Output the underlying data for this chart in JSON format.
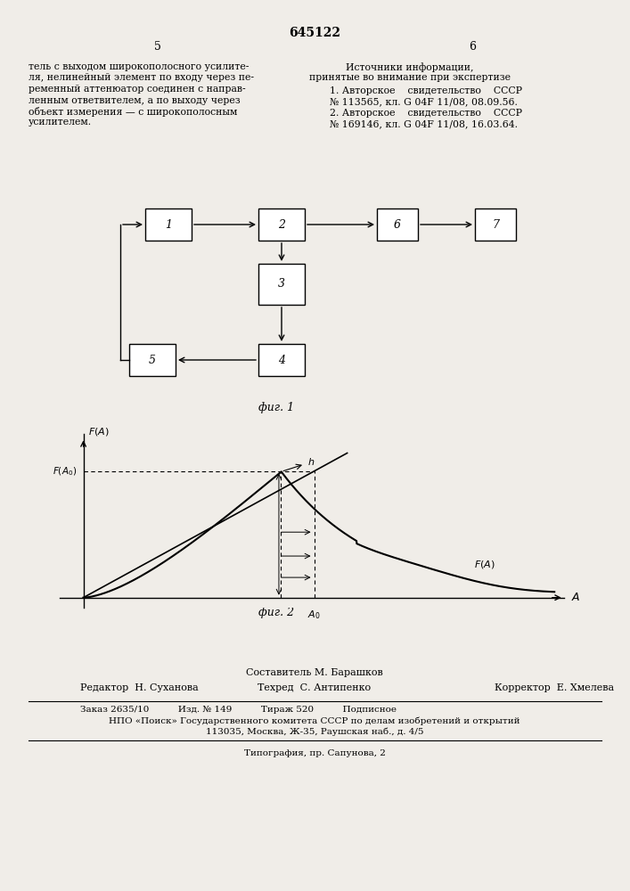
{
  "title": "645122",
  "page_numbers": [
    "5",
    "6"
  ],
  "left_lines": [
    "тель с выходом широкополосного усилите-",
    "ля, нелинейный элемент по входу через пе-",
    "ременный аттенюатор соединен с направ-",
    "ленным ответвителем, а по выходу через",
    "объект измерения — с широкополосным",
    "усилителем."
  ],
  "right_lines_header": [
    "Источники информации,",
    "принятые во внимание при экспертизе"
  ],
  "right_lines_refs": [
    "1. Авторское    свидетельство    СССР",
    "№ 113565, кл. G 04F 11/08, 08.09.56.",
    "2. Авторское    свидетельство    СССР",
    "№ 169146, кл. G 04F 11/08, 16.03.64."
  ],
  "fig1_label": "фиг. 1",
  "fig2_label": "фиг. 2",
  "block_labels": [
    "1",
    "2",
    "3",
    "4",
    "5",
    "6",
    "7"
  ],
  "footer_composer": "Составитель М. Барашков",
  "footer_editor": "Редактор  Н. Суханова",
  "footer_tech": "Техред  С. Антипенко",
  "footer_corrector": "Корректор  Е. Хмелева",
  "footer_line1": "Заказ 2635/10          Изд. № 149          Тираж 520          Подписное",
  "footer_line2": "НПО «Поиск» Государственного комитета СССР по делам изобретений и открытий",
  "footer_line3": "113035, Москва, Ж-35, Раушская наб., д. 4/5",
  "footer_line4": "Типография, пр. Сапунова, 2",
  "bg_color": "#f0ede8"
}
